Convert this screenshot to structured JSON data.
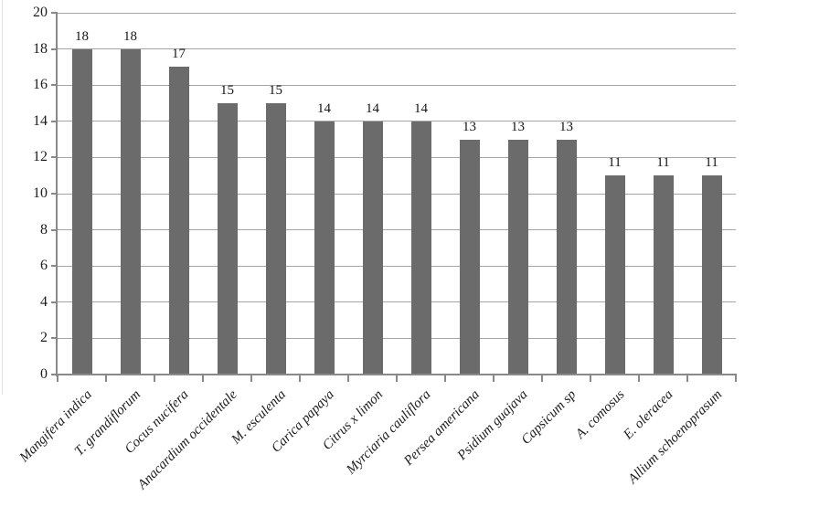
{
  "chart_data": {
    "type": "bar",
    "title": "",
    "xlabel": "",
    "ylabel": "",
    "categories": [
      "Mangifera indica",
      "T. grandiflorum",
      "Cocus nucifera",
      "Anacardium occidentale",
      "M. esculenta",
      "Carica papaya",
      "Citrus x limon",
      "Myrciaria cauliflora",
      "Persea americana",
      "Psidium guajava",
      "Capsicum sp",
      "A. comosus",
      "E. oleracea",
      "Allium schoenoprasum"
    ],
    "values": [
      18,
      18,
      17,
      15,
      15,
      14,
      14,
      14,
      13,
      13,
      13,
      11,
      11,
      11
    ],
    "value_labels_visible": true,
    "ylim": [
      0,
      20
    ],
    "yticks": [
      0,
      2,
      4,
      6,
      8,
      10,
      12,
      14,
      16,
      18,
      20
    ],
    "grid": "horizontal",
    "legend": "none",
    "category_label_rotation_deg": 45,
    "category_label_style": "italic",
    "colors": {
      "bar": "#6b6b6b",
      "gridline": "#a6a6a6",
      "axis": "#898989",
      "text": "#1c1c1c"
    }
  }
}
